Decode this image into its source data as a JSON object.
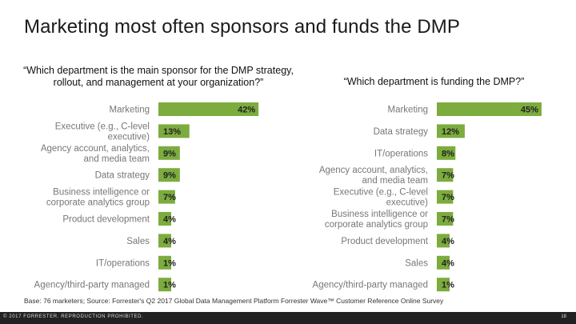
{
  "title": "Marketing most often sponsors and funds the DMP",
  "footnote": "Base: 76 marketers; Source: Forrester's Q2 2017 Global Data Management Platform Forrester Wave™ Customer Reference Online Survey",
  "copyright": "© 2017 FORRESTER. REPRODUCTION PROHIBITED.",
  "page_number": "18",
  "chart_data": [
    {
      "type": "bar",
      "orientation": "horizontal",
      "title": "“Which department is the main sponsor for the DMP strategy, rollout, and management at your organization?”",
      "categories": [
        [
          "Marketing"
        ],
        [
          "Executive (e.g., C-level",
          "executive)"
        ],
        [
          "Agency account, analytics,",
          "and media team"
        ],
        [
          "Data strategy"
        ],
        [
          "Business intelligence or",
          "corporate analytics group"
        ],
        [
          "Product development"
        ],
        [
          "Sales"
        ],
        [
          "IT/operations"
        ],
        [
          "Agency/third-party managed"
        ]
      ],
      "values": [
        42,
        13,
        9,
        9,
        7,
        4,
        4,
        1,
        1
      ],
      "value_labels": [
        "42%",
        "13%",
        "9%",
        "9%",
        "7%",
        "4%",
        "4%",
        "1%",
        "1%"
      ],
      "bar_color": "#7cac3e"
    },
    {
      "type": "bar",
      "orientation": "horizontal",
      "title": "“Which department is funding the DMP?”",
      "categories": [
        [
          "Marketing"
        ],
        [
          "Data strategy"
        ],
        [
          "IT/operations"
        ],
        [
          "Agency account, analytics,",
          "and media team"
        ],
        [
          "Executive (e.g., C-level",
          "executive)"
        ],
        [
          "Business intelligence or",
          "corporate analytics group"
        ],
        [
          "Product development"
        ],
        [
          "Sales"
        ],
        [
          "Agency/third-party managed"
        ]
      ],
      "values": [
        45,
        12,
        8,
        7,
        7,
        7,
        4,
        4,
        1
      ],
      "value_labels": [
        "45%",
        "12%",
        "8%",
        "7%",
        "7%",
        "7%",
        "4%",
        "4%",
        "1%"
      ],
      "bar_color": "#7cac3e"
    }
  ]
}
